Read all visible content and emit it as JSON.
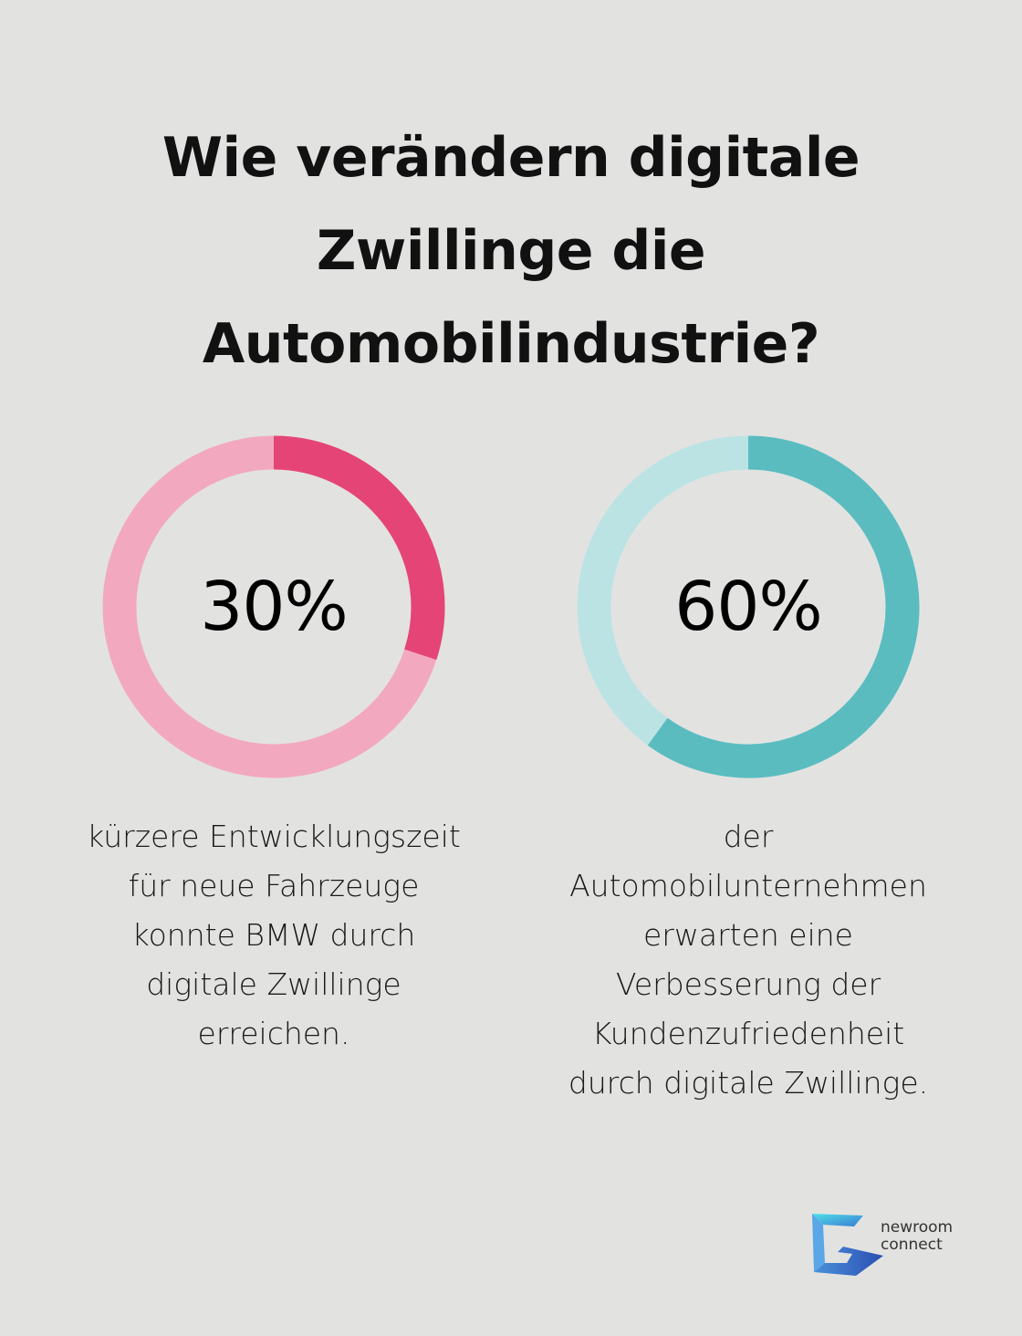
{
  "title_lines": [
    "Wie verändern digitale",
    "Zwillinge die",
    "Automobilindustrie?"
  ],
  "colors": {
    "background": "#e2e3e1",
    "pink_track": "#f2a9bf",
    "pink_fill": "#e54576",
    "teal_track": "#bce3e4",
    "teal_fill": "#5bbcc0"
  },
  "chart_data": [
    {
      "type": "pie",
      "variant": "donut",
      "value": 30,
      "max": 100,
      "label": "30%",
      "description_lines": [
        "kürzere Entwicklungszeit",
        "für neue Fahrzeuge",
        "konnte BMW durch",
        "digitale Zwillinge",
        "erreichen."
      ],
      "fill_color": "#e54576",
      "track_color": "#f2a9bf"
    },
    {
      "type": "pie",
      "variant": "donut",
      "value": 60,
      "max": 100,
      "label": "60%",
      "description_lines": [
        "der",
        "Automobilunternehmen",
        "erwarten eine",
        "Verbesserung der",
        "Kundenzufriedenheit",
        "durch digitale Zwillinge."
      ],
      "fill_color": "#5bbcc0",
      "track_color": "#bce3e4"
    }
  ],
  "logo": {
    "line1": "newroom",
    "line2": "connect",
    "icon": "newroom-connect-logo-icon"
  }
}
